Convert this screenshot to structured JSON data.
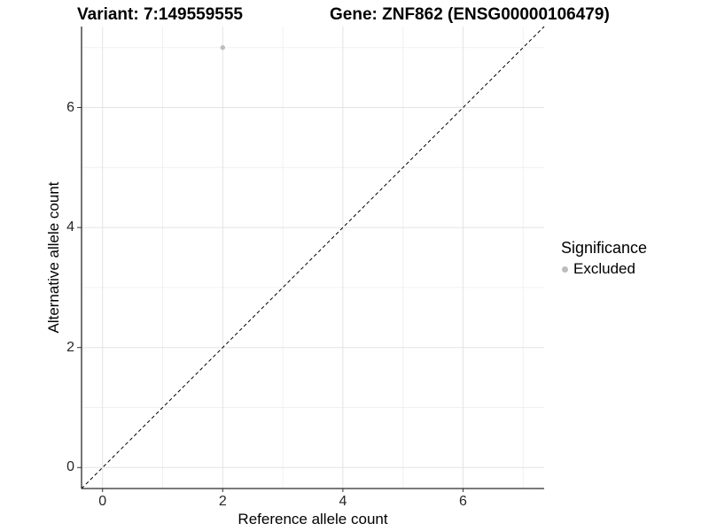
{
  "titles": {
    "variant": "Variant: 7:149559555",
    "gene": "Gene: ZNF862 (ENSG00000106479)"
  },
  "axes": {
    "x": {
      "label": "Reference allele count",
      "tick_labels": [
        "0",
        "2",
        "4",
        "6"
      ]
    },
    "y": {
      "label": "Alternative allele count",
      "tick_labels": [
        "0",
        "2",
        "4",
        "6"
      ]
    }
  },
  "legend": {
    "title": "Significance",
    "items": [
      {
        "label": "Excluded",
        "swatch_color": "#bdbdbd"
      }
    ]
  },
  "colors": {
    "background": "#ffffff",
    "grid_major": "#e3e3e3",
    "grid_minor": "#f0f0f0",
    "axis_line": "#2b2b2b",
    "tick_mark": "#333333",
    "tick_label": "#262626",
    "point": "#bdbdbd",
    "reference_line": "#000000"
  },
  "chart_data": {
    "type": "scatter",
    "title": "Variant: 7:149559555    Gene: ZNF862 (ENSG00000106479)",
    "xlabel": "Reference allele count",
    "ylabel": "Alternative allele count",
    "xlim": [
      -0.35,
      7.35
    ],
    "ylim": [
      -0.35,
      7.35
    ],
    "x_major_ticks": [
      0,
      2,
      4,
      6
    ],
    "y_major_ticks": [
      0,
      2,
      4,
      6
    ],
    "x_minor_ticks": [
      1,
      3,
      5,
      7
    ],
    "y_minor_ticks": [
      1,
      3,
      5,
      7
    ],
    "grid": true,
    "legend_position": "right",
    "series": [
      {
        "name": "Excluded",
        "color": "#bdbdbd",
        "point_radius": 2.7,
        "points": [
          {
            "x": 2,
            "y": 7
          }
        ]
      }
    ],
    "reference_line": {
      "type": "identity",
      "equation": "y = x",
      "style": "dashed",
      "color": "#000000"
    }
  }
}
